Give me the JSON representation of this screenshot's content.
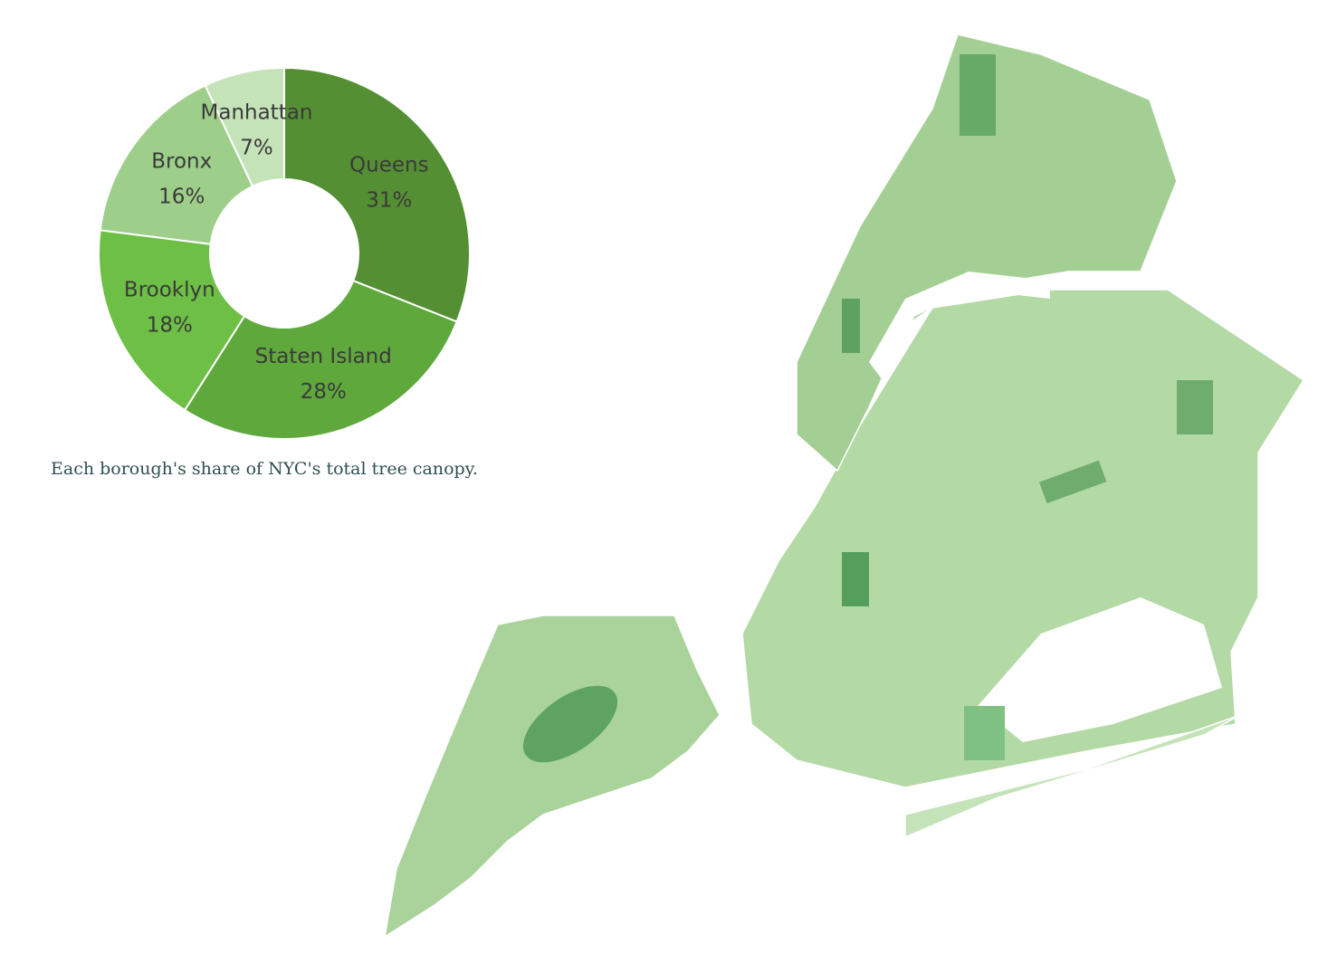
{
  "chart_data": {
    "type": "donut",
    "caption": "Each borough's share of NYC's total tree canopy.",
    "categories": [
      "Queens",
      "Staten Island",
      "Brooklyn",
      "Bronx",
      "Manhattan"
    ],
    "values": [
      31,
      28,
      18,
      16,
      7
    ],
    "value_labels": [
      "31%",
      "28%",
      "18%",
      "16%",
      "7%"
    ],
    "colors": [
      "#548f33",
      "#5fa83c",
      "#6dbf45",
      "#9ecf8a",
      "#c5e3b8"
    ]
  }
}
